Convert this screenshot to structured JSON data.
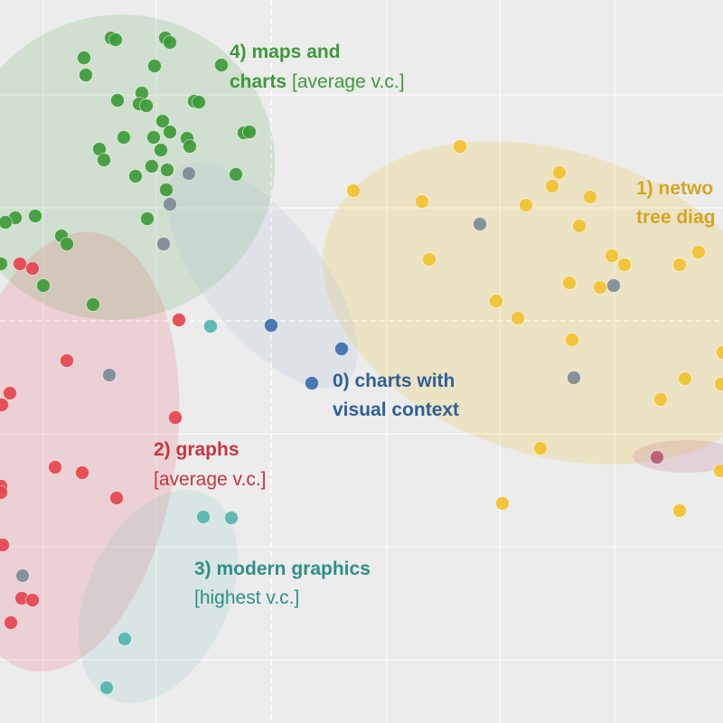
{
  "chart_data": {
    "type": "scatter",
    "grid": true,
    "clusters": [
      {
        "id": 4,
        "title": "4) maps and",
        "title2": "charts",
        "note": "[average v.c.]",
        "color": "#3d9a3a",
        "points": [
          [
            123,
            42
          ],
          [
            128,
            44
          ],
          [
            183,
            42
          ],
          [
            188,
            47
          ],
          [
            93,
            64
          ],
          [
            95,
            83
          ],
          [
            171,
            73
          ],
          [
            245,
            72
          ],
          [
            130,
            111
          ],
          [
            157,
            103
          ],
          [
            154,
            115
          ],
          [
            162,
            117
          ],
          [
            215,
            112
          ],
          [
            220,
            113
          ],
          [
            180,
            134
          ],
          [
            137,
            152
          ],
          [
            170,
            152
          ],
          [
            188,
            146
          ],
          [
            207,
            153
          ],
          [
            270,
            147
          ],
          [
            276,
            146
          ],
          [
            210,
            162
          ],
          [
            110,
            165
          ],
          [
            115,
            177
          ],
          [
            178,
            166
          ],
          [
            168,
            184
          ],
          [
            185,
            188
          ],
          [
            150,
            195
          ],
          [
            261,
            193
          ],
          [
            184,
            210
          ],
          [
            17,
            241
          ],
          [
            39,
            239
          ],
          [
            163,
            242
          ],
          [
            6,
            246
          ],
          [
            68,
            261
          ],
          [
            74,
            270
          ],
          [
            1,
            292
          ],
          [
            48,
            316
          ],
          [
            103,
            337
          ]
        ]
      },
      {
        "id": 1,
        "title": "1) netwo",
        "title2": "tree diag",
        "color": "#f2c12e",
        "points": [
          [
            509,
            162
          ],
          [
            391,
            211
          ],
          [
            619,
            191
          ],
          [
            611,
            206
          ],
          [
            467,
            223
          ],
          [
            582,
            227
          ],
          [
            653,
            218
          ],
          [
            641,
            250
          ],
          [
            475,
            287
          ],
          [
            677,
            283
          ],
          [
            691,
            293
          ],
          [
            773,
            279
          ],
          [
            752,
            293
          ],
          [
            630,
            313
          ],
          [
            664,
            318
          ],
          [
            549,
            333
          ],
          [
            573,
            352
          ],
          [
            633,
            376
          ],
          [
            800,
            390
          ],
          [
            758,
            419
          ],
          [
            798,
            425
          ],
          [
            731,
            442
          ],
          [
            598,
            496
          ],
          [
            797,
            521
          ],
          [
            556,
            557
          ],
          [
            752,
            565
          ]
        ]
      },
      {
        "id": 2,
        "title": "2) graphs",
        "note": "[average v.c.]",
        "color": "#e4444e",
        "points": [
          [
            22,
            292
          ],
          [
            36,
            297
          ],
          [
            198,
            354
          ],
          [
            74,
            399
          ],
          [
            11,
            435
          ],
          [
            2,
            448
          ],
          [
            194,
            462
          ],
          [
            61,
            517
          ],
          [
            91,
            523
          ],
          [
            1,
            538
          ],
          [
            1,
            545
          ],
          [
            129,
            551
          ],
          [
            3,
            603
          ],
          [
            24,
            662
          ],
          [
            36,
            664
          ],
          [
            12,
            689
          ]
        ]
      },
      {
        "id": 3,
        "title": "3) modern graphics",
        "note": "[highest v.c.]",
        "color": "#54b4ad",
        "points": [
          [
            233,
            361
          ],
          [
            225,
            572
          ],
          [
            256,
            573
          ],
          [
            138,
            707
          ],
          [
            118,
            761
          ]
        ]
      },
      {
        "id": 0,
        "title": "0) charts with",
        "title2": "visual context",
        "color": "#3a6fad",
        "points": [
          [
            300,
            360
          ],
          [
            378,
            386
          ],
          [
            345,
            424
          ]
        ]
      },
      {
        "id": -1,
        "color": "#7d8b94",
        "points": [
          [
            209,
            192
          ],
          [
            188,
            226
          ],
          [
            181,
            270
          ],
          [
            531,
            248
          ],
          [
            679,
            316
          ],
          [
            635,
            418
          ],
          [
            121,
            415
          ],
          [
            25,
            637
          ]
        ]
      },
      {
        "id": -2,
        "color": "#b55a73",
        "points": [
          [
            727,
            506
          ]
        ]
      }
    ]
  }
}
